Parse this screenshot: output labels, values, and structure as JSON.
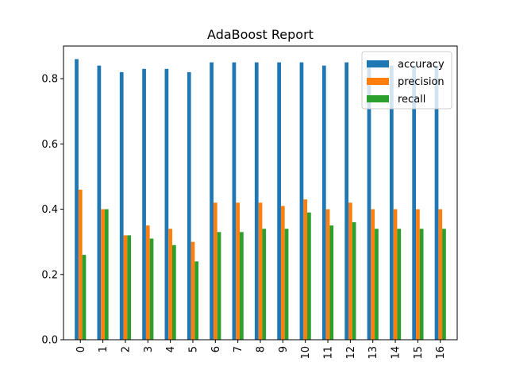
{
  "chart_data": {
    "type": "bar",
    "title": "AdaBoost Report",
    "xlabel": "",
    "ylabel": "",
    "categories": [
      "0",
      "1",
      "2",
      "3",
      "4",
      "5",
      "6",
      "7",
      "8",
      "9",
      "10",
      "11",
      "12",
      "13",
      "14",
      "15",
      "16"
    ],
    "series": [
      {
        "name": "accuracy",
        "color": "#1f77b4",
        "values": [
          0.86,
          0.84,
          0.82,
          0.83,
          0.83,
          0.82,
          0.85,
          0.85,
          0.85,
          0.85,
          0.85,
          0.84,
          0.85,
          0.84,
          0.84,
          0.84,
          0.84
        ]
      },
      {
        "name": "precision",
        "color": "#ff7f0e",
        "values": [
          0.46,
          0.4,
          0.32,
          0.35,
          0.34,
          0.3,
          0.42,
          0.42,
          0.42,
          0.41,
          0.43,
          0.4,
          0.42,
          0.4,
          0.4,
          0.4,
          0.4
        ]
      },
      {
        "name": "recall",
        "color": "#2ca02c",
        "values": [
          0.26,
          0.4,
          0.32,
          0.31,
          0.29,
          0.24,
          0.33,
          0.33,
          0.34,
          0.34,
          0.39,
          0.35,
          0.36,
          0.34,
          0.34,
          0.34,
          0.34
        ]
      }
    ],
    "ylim": [
      0,
      0.9
    ],
    "yticks": [
      0.0,
      0.2,
      0.4,
      0.6,
      0.8
    ],
    "ytick_labels": [
      "0.0",
      "0.2",
      "0.4",
      "0.6",
      "0.8"
    ],
    "grid": false,
    "legend_position": "top-right",
    "xtick_rotation": "vertical"
  }
}
